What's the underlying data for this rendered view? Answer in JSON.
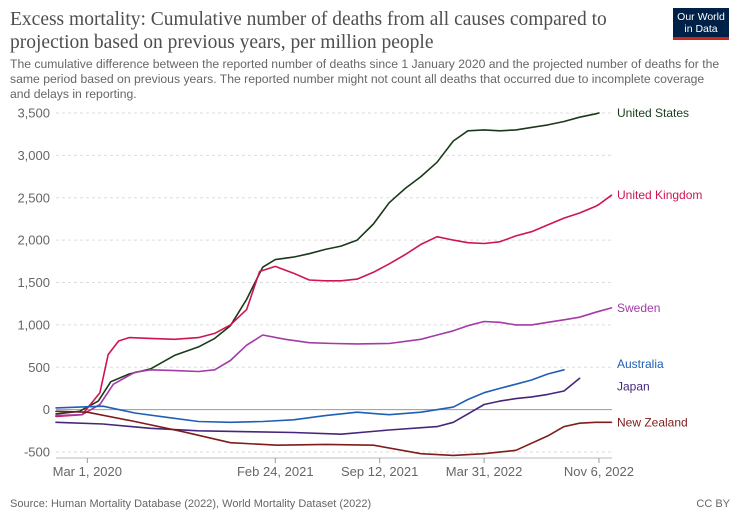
{
  "header": {
    "title": "Excess mortality: Cumulative number of deaths from all causes compared to projection based on previous years, per million people",
    "subtitle": "The cumulative difference between the reported number of deaths since 1 January 2020 and the projected number of deaths for the same period based on previous years. The reported number might not count all deaths that occurred due to incomplete coverage and delays in reporting.",
    "logo_line1": "Our World",
    "logo_line2": "in Data"
  },
  "footer": {
    "source": "Source: Human Mortality Database (2022), World Mortality Dataset (2022)",
    "license": "CC BY"
  },
  "colors": {
    "united_states": "#1a3a1a",
    "united_kingdom": "#ce1552",
    "sweden": "#a33ba6",
    "australia": "#1f5fb4",
    "japan": "#44277a",
    "new_zealand": "#7f1c1c",
    "grid": "#dddddd",
    "zero_line": "#999999"
  },
  "chart_data": {
    "type": "line",
    "x_type": "date",
    "ylim": [
      -500,
      3500
    ],
    "xlim": [
      "2020-01-01",
      "2022-12-01"
    ],
    "y_ticks": [
      -500,
      0,
      500,
      1000,
      1500,
      2000,
      2500,
      3000,
      3500
    ],
    "y_tick_labels": [
      "-500",
      "0",
      "500",
      "1,000",
      "1,500",
      "2,000",
      "2,500",
      "3,000",
      "3,500"
    ],
    "x_ticks": [
      "2020-03-01",
      "2021-02-24",
      "2021-09-12",
      "2022-03-31",
      "2022-11-06"
    ],
    "x_tick_labels": [
      "Mar 1, 2020",
      "Feb 24, 2021",
      "Sep 12, 2021",
      "Mar 31, 2022",
      "Nov 6, 2022"
    ],
    "grid": true,
    "legend_placement": "right, at line ends",
    "series": [
      {
        "name": "United States",
        "color_key": "united_states",
        "x": [
          "2020-01-01",
          "2020-02-15",
          "2020-03-22",
          "2020-04-15",
          "2020-05-20",
          "2020-06-30",
          "2020-08-15",
          "2020-09-30",
          "2020-10-31",
          "2020-11-30",
          "2020-12-31",
          "2021-01-31",
          "2021-02-24",
          "2021-03-31",
          "2021-04-30",
          "2021-05-31",
          "2021-06-30",
          "2021-07-31",
          "2021-08-31",
          "2021-09-30",
          "2021-10-31",
          "2021-11-30",
          "2021-12-31",
          "2022-01-31",
          "2022-02-28",
          "2022-03-31",
          "2022-04-30",
          "2022-05-31",
          "2022-06-30",
          "2022-07-31",
          "2022-08-31",
          "2022-09-30",
          "2022-10-31",
          "2022-11-06"
        ],
        "y": [
          -50,
          -20,
          100,
          330,
          420,
          480,
          640,
          740,
          840,
          990,
          1300,
          1680,
          1770,
          1800,
          1840,
          1890,
          1930,
          2000,
          2190,
          2440,
          2610,
          2750,
          2920,
          3170,
          3290,
          3300,
          3290,
          3300,
          3330,
          3360,
          3400,
          3450,
          3490,
          3500
        ]
      },
      {
        "name": "United Kingdom",
        "color_key": "united_kingdom",
        "x": [
          "2020-01-01",
          "2020-02-20",
          "2020-03-25",
          "2020-04-10",
          "2020-04-30",
          "2020-05-20",
          "2020-06-30",
          "2020-08-15",
          "2020-09-30",
          "2020-10-31",
          "2020-11-30",
          "2020-12-31",
          "2021-01-25",
          "2021-02-24",
          "2021-03-31",
          "2021-04-30",
          "2021-05-31",
          "2021-06-30",
          "2021-07-31",
          "2021-08-31",
          "2021-09-30",
          "2021-10-31",
          "2021-11-30",
          "2021-12-31",
          "2022-01-31",
          "2022-02-28",
          "2022-03-31",
          "2022-04-30",
          "2022-05-31",
          "2022-06-30",
          "2022-07-31",
          "2022-08-31",
          "2022-09-30",
          "2022-10-31",
          "2022-11-06",
          "2022-11-30"
        ],
        "y": [
          -80,
          -60,
          200,
          650,
          810,
          850,
          840,
          830,
          850,
          900,
          1000,
          1180,
          1630,
          1690,
          1610,
          1530,
          1520,
          1520,
          1540,
          1620,
          1720,
          1830,
          1950,
          2040,
          2000,
          1970,
          1960,
          1980,
          2050,
          2100,
          2180,
          2260,
          2320,
          2400,
          2420,
          2530
        ]
      },
      {
        "name": "Sweden",
        "color_key": "sweden",
        "x": [
          "2020-01-01",
          "2020-02-20",
          "2020-03-25",
          "2020-04-20",
          "2020-05-31",
          "2020-06-30",
          "2020-08-15",
          "2020-09-30",
          "2020-10-31",
          "2020-11-30",
          "2020-12-31",
          "2021-01-31",
          "2021-03-15",
          "2021-04-30",
          "2021-06-15",
          "2021-07-31",
          "2021-09-30",
          "2021-11-30",
          "2021-12-31",
          "2022-01-31",
          "2022-02-28",
          "2022-03-31",
          "2022-04-30",
          "2022-05-31",
          "2022-06-30",
          "2022-07-31",
          "2022-08-31",
          "2022-09-30",
          "2022-10-31",
          "2022-11-30"
        ],
        "y": [
          -70,
          -60,
          60,
          300,
          440,
          470,
          460,
          450,
          470,
          580,
          760,
          880,
          830,
          790,
          780,
          775,
          780,
          830,
          880,
          930,
          990,
          1040,
          1030,
          1000,
          1000,
          1030,
          1060,
          1090,
          1150,
          1200
        ]
      },
      {
        "name": "Australia",
        "color_key": "australia",
        "x": [
          "2020-01-01",
          "2020-03-31",
          "2020-05-31",
          "2020-07-31",
          "2020-09-30",
          "2020-11-30",
          "2021-01-31",
          "2021-03-31",
          "2021-05-31",
          "2021-07-31",
          "2021-09-30",
          "2021-11-30",
          "2022-01-31",
          "2022-02-28",
          "2022-03-31",
          "2022-04-30",
          "2022-05-31",
          "2022-06-30",
          "2022-07-31",
          "2022-08-31"
        ],
        "y": [
          20,
          40,
          -40,
          -90,
          -140,
          -150,
          -140,
          -120,
          -70,
          -30,
          -60,
          -30,
          30,
          120,
          200,
          250,
          300,
          350,
          420,
          470
        ]
      },
      {
        "name": "Japan",
        "color_key": "japan",
        "x": [
          "2020-01-01",
          "2020-03-31",
          "2020-06-30",
          "2020-09-30",
          "2020-12-31",
          "2021-03-31",
          "2021-06-30",
          "2021-09-30",
          "2021-12-31",
          "2022-01-31",
          "2022-02-28",
          "2022-03-31",
          "2022-04-30",
          "2022-05-31",
          "2022-06-30",
          "2022-07-31",
          "2022-08-31",
          "2022-09-30"
        ],
        "y": [
          -150,
          -170,
          -220,
          -250,
          -260,
          -270,
          -290,
          -240,
          -200,
          -150,
          -50,
          60,
          100,
          130,
          150,
          180,
          220,
          370
        ]
      },
      {
        "name": "New Zealand",
        "color_key": "new_zealand",
        "x": [
          "2020-01-01",
          "2020-03-01",
          "2020-05-31",
          "2020-08-31",
          "2020-11-30",
          "2021-02-28",
          "2021-05-31",
          "2021-08-31",
          "2021-11-30",
          "2022-01-31",
          "2022-03-31",
          "2022-05-31",
          "2022-07-31",
          "2022-08-31",
          "2022-09-30",
          "2022-10-31",
          "2022-11-30"
        ],
        "y": [
          -20,
          -30,
          -140,
          -260,
          -390,
          -420,
          -410,
          -420,
          -520,
          -540,
          -520,
          -480,
          -310,
          -200,
          -160,
          -150,
          -150
        ]
      }
    ]
  }
}
